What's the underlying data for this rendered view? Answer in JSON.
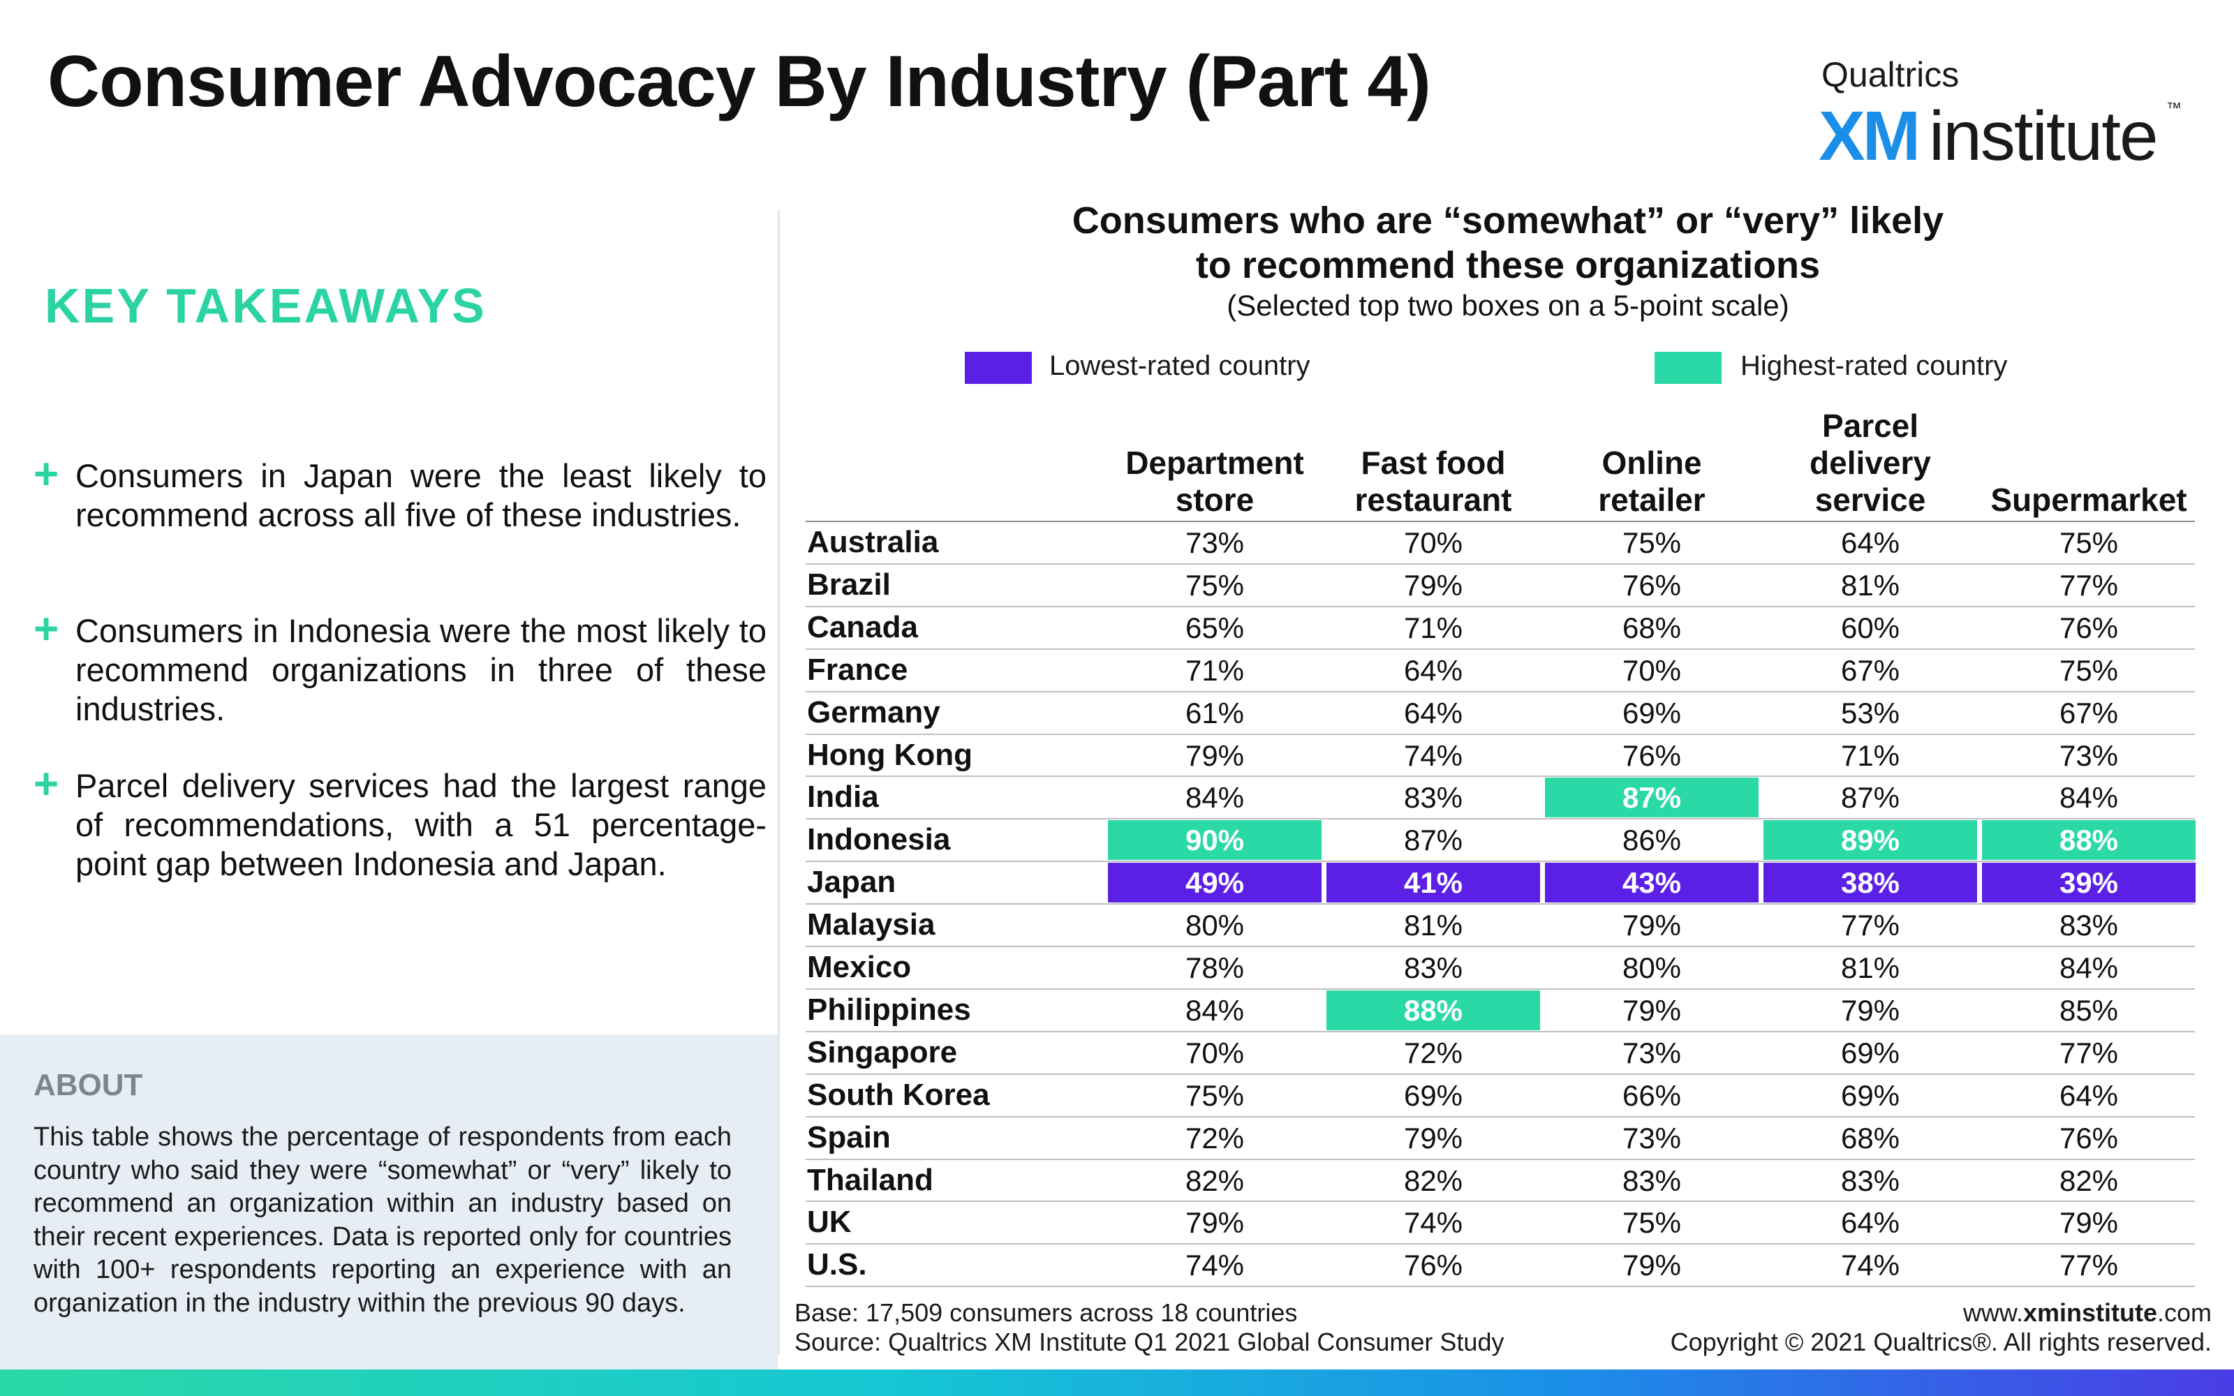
{
  "page": {
    "title": "Consumer Advocacy By Industry (Part 4)"
  },
  "logo": {
    "top": "Qualtrics",
    "xm": "XM",
    "word": "institute",
    "tm": "™"
  },
  "takeaways": {
    "heading": "KEY TAKEAWAYS",
    "items": [
      "Consumers in Japan were the least likely to recommend across all five of these industries.",
      "Consumers in Indonesia were the most likely to recommend organizations in three of these industries.",
      "Parcel delivery services had the largest range of recommendations, with a 51 percentage-point gap between Indonesia and Japan."
    ]
  },
  "about": {
    "heading": "ABOUT",
    "body": "This table shows the percentage of respondents from each country who said they were “somewhat” or “very” likely to recommend an organization within an industry based on their recent experiences. Data is reported only for countries with 100+ respondents reporting an experience with an organization in the industry within the previous 90 days."
  },
  "legend": {
    "lowest": "Lowest-rated country",
    "highest": "Highest-rated country"
  },
  "colors": {
    "lowest": "#5b1fe6",
    "highest": "#2bd9a6",
    "accent": "#2bd3a3"
  },
  "footer": {
    "base": "Base: 17,509 consumers across 18 countries",
    "source": "Source: Qualtrics XM Institute Q1 2021 Global Consumer Study",
    "site_prefix": "www.",
    "site_bold": "xminstitute",
    "site_suffix": ".com",
    "copyright": "Copyright © 2021 Qualtrics®. All rights reserved."
  },
  "chart_data": {
    "type": "table",
    "title_line1": "Consumers who are “somewhat” or “very” likely",
    "title_line2": "to recommend these organizations",
    "subtitle": "(Selected top two boxes on a 5-point scale)",
    "columns": [
      [
        "Department",
        "store"
      ],
      [
        "Fast food",
        "restaurant"
      ],
      [
        "Online",
        "retailer"
      ],
      [
        "Parcel",
        "delivery",
        "service"
      ],
      [
        "Supermarket"
      ]
    ],
    "rows": [
      {
        "country": "Australia",
        "values": [
          "73%",
          "70%",
          "75%",
          "64%",
          "75%"
        ],
        "flags": [
          "",
          "",
          "",
          "",
          ""
        ]
      },
      {
        "country": "Brazil",
        "values": [
          "75%",
          "79%",
          "76%",
          "81%",
          "77%"
        ],
        "flags": [
          "",
          "",
          "",
          "",
          ""
        ]
      },
      {
        "country": "Canada",
        "values": [
          "65%",
          "71%",
          "68%",
          "60%",
          "76%"
        ],
        "flags": [
          "",
          "",
          "",
          "",
          ""
        ]
      },
      {
        "country": "France",
        "values": [
          "71%",
          "64%",
          "70%",
          "67%",
          "75%"
        ],
        "flags": [
          "",
          "",
          "",
          "",
          ""
        ]
      },
      {
        "country": "Germany",
        "values": [
          "61%",
          "64%",
          "69%",
          "53%",
          "67%"
        ],
        "flags": [
          "",
          "",
          "",
          "",
          ""
        ]
      },
      {
        "country": "Hong Kong",
        "values": [
          "79%",
          "74%",
          "76%",
          "71%",
          "73%"
        ],
        "flags": [
          "",
          "",
          "",
          "",
          ""
        ]
      },
      {
        "country": "India",
        "values": [
          "84%",
          "83%",
          "87%",
          "87%",
          "84%"
        ],
        "flags": [
          "",
          "",
          "high",
          "",
          ""
        ]
      },
      {
        "country": "Indonesia",
        "values": [
          "90%",
          "87%",
          "86%",
          "89%",
          "88%"
        ],
        "flags": [
          "high",
          "",
          "",
          "high",
          "high"
        ]
      },
      {
        "country": "Japan",
        "values": [
          "49%",
          "41%",
          "43%",
          "38%",
          "39%"
        ],
        "flags": [
          "low",
          "low",
          "low",
          "low",
          "low"
        ]
      },
      {
        "country": "Malaysia",
        "values": [
          "80%",
          "81%",
          "79%",
          "77%",
          "83%"
        ],
        "flags": [
          "",
          "",
          "",
          "",
          ""
        ]
      },
      {
        "country": "Mexico",
        "values": [
          "78%",
          "83%",
          "80%",
          "81%",
          "84%"
        ],
        "flags": [
          "",
          "",
          "",
          "",
          ""
        ]
      },
      {
        "country": "Philippines",
        "values": [
          "84%",
          "88%",
          "79%",
          "79%",
          "85%"
        ],
        "flags": [
          "",
          "high",
          "",
          "",
          ""
        ]
      },
      {
        "country": "Singapore",
        "values": [
          "70%",
          "72%",
          "73%",
          "69%",
          "77%"
        ],
        "flags": [
          "",
          "",
          "",
          "",
          ""
        ]
      },
      {
        "country": "South Korea",
        "values": [
          "75%",
          "69%",
          "66%",
          "69%",
          "64%"
        ],
        "flags": [
          "",
          "",
          "",
          "",
          ""
        ]
      },
      {
        "country": "Spain",
        "values": [
          "72%",
          "79%",
          "73%",
          "68%",
          "76%"
        ],
        "flags": [
          "",
          "",
          "",
          "",
          ""
        ]
      },
      {
        "country": "Thailand",
        "values": [
          "82%",
          "82%",
          "83%",
          "83%",
          "82%"
        ],
        "flags": [
          "",
          "",
          "",
          "",
          ""
        ]
      },
      {
        "country": "UK",
        "values": [
          "79%",
          "74%",
          "75%",
          "64%",
          "79%"
        ],
        "flags": [
          "",
          "",
          "",
          "",
          ""
        ]
      },
      {
        "country": "U.S.",
        "values": [
          "74%",
          "76%",
          "79%",
          "74%",
          "77%"
        ],
        "flags": [
          "",
          "",
          "",
          "",
          ""
        ]
      }
    ]
  }
}
